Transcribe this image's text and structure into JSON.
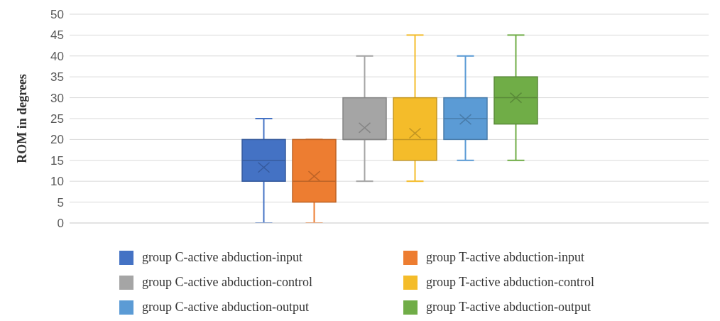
{
  "chart_data": {
    "type": "box",
    "ylabel": "ROM in degrees",
    "categories": [
      null
    ],
    "ylim": [
      0,
      50
    ],
    "yticks": [
      0,
      5,
      10,
      15,
      20,
      25,
      30,
      35,
      40,
      45,
      50
    ],
    "grid": "y",
    "legend": "bottom",
    "series": [
      {
        "name": "group C-active abduction-input",
        "color": "#4472c4",
        "boxes": [
          {
            "low": 0,
            "q1": 10,
            "median": 15,
            "q3": 20,
            "high": 25,
            "mean": 13.3
          }
        ]
      },
      {
        "name": "group T-active abduction-input",
        "color": "#ed7d31",
        "boxes": [
          {
            "low": 0,
            "q1": 5,
            "median": 10,
            "q3": 20,
            "high": 20,
            "mean": 11.2
          }
        ]
      },
      {
        "name": "group C-active abduction-control",
        "color": "#a5a5a5",
        "boxes": [
          {
            "low": 10,
            "q1": 20,
            "median": 20,
            "q3": 30,
            "high": 40,
            "mean": 22.8
          }
        ]
      },
      {
        "name": "group T-active abduction-control",
        "color": "#f4bc2a",
        "boxes": [
          {
            "low": 10,
            "q1": 15,
            "median": 20,
            "q3": 30,
            "high": 45,
            "mean": 21.5
          }
        ]
      },
      {
        "name": "group C-active abduction-output",
        "color": "#5b9bd5",
        "boxes": [
          {
            "low": 15,
            "q1": 20,
            "median": 25,
            "q3": 30,
            "high": 40,
            "mean": 24.8
          }
        ]
      },
      {
        "name": "group T-active abduction-output",
        "color": "#70ad47",
        "boxes": [
          {
            "low": 15,
            "q1": 23.7,
            "median": 30,
            "q3": 35,
            "high": 45,
            "mean": 30
          }
        ]
      }
    ]
  }
}
